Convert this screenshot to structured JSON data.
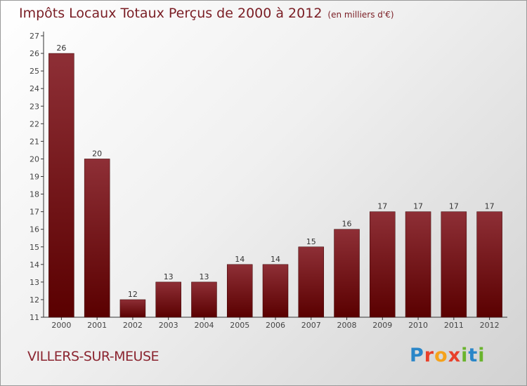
{
  "title": "Impôts Locaux Totaux Perçus de 2000 à 2012",
  "subtitle": "(en milliers d'€)",
  "location": "VILLERS-SUR-MEUSE",
  "logo": {
    "letters": [
      "P",
      "r",
      "o",
      "x",
      "i",
      "t",
      "i"
    ],
    "colors": [
      "#2a86c8",
      "#e8402a",
      "#f5a21b",
      "#e8402a",
      "#6ab42d",
      "#2a86c8",
      "#6ab42d"
    ]
  },
  "colors": {
    "bar_top": "#8e2f36",
    "bar_bottom": "#5a0000",
    "title": "#7a1d24"
  },
  "chart_data": {
    "type": "bar",
    "categories": [
      "2000",
      "2001",
      "2002",
      "2003",
      "2004",
      "2005",
      "2006",
      "2007",
      "2008",
      "2009",
      "2010",
      "2011",
      "2012"
    ],
    "values": [
      26,
      20,
      12,
      13,
      13,
      14,
      14,
      15,
      16,
      17,
      17,
      17,
      17
    ],
    "ylim": [
      11,
      27
    ],
    "yticks": [
      11,
      12,
      13,
      14,
      15,
      16,
      17,
      18,
      19,
      20,
      21,
      22,
      23,
      24,
      25,
      26,
      27
    ],
    "title": "Impôts Locaux Totaux Perçus de 2000 à 2012",
    "xlabel": "",
    "ylabel": "",
    "grid": false,
    "data_labels": true
  }
}
